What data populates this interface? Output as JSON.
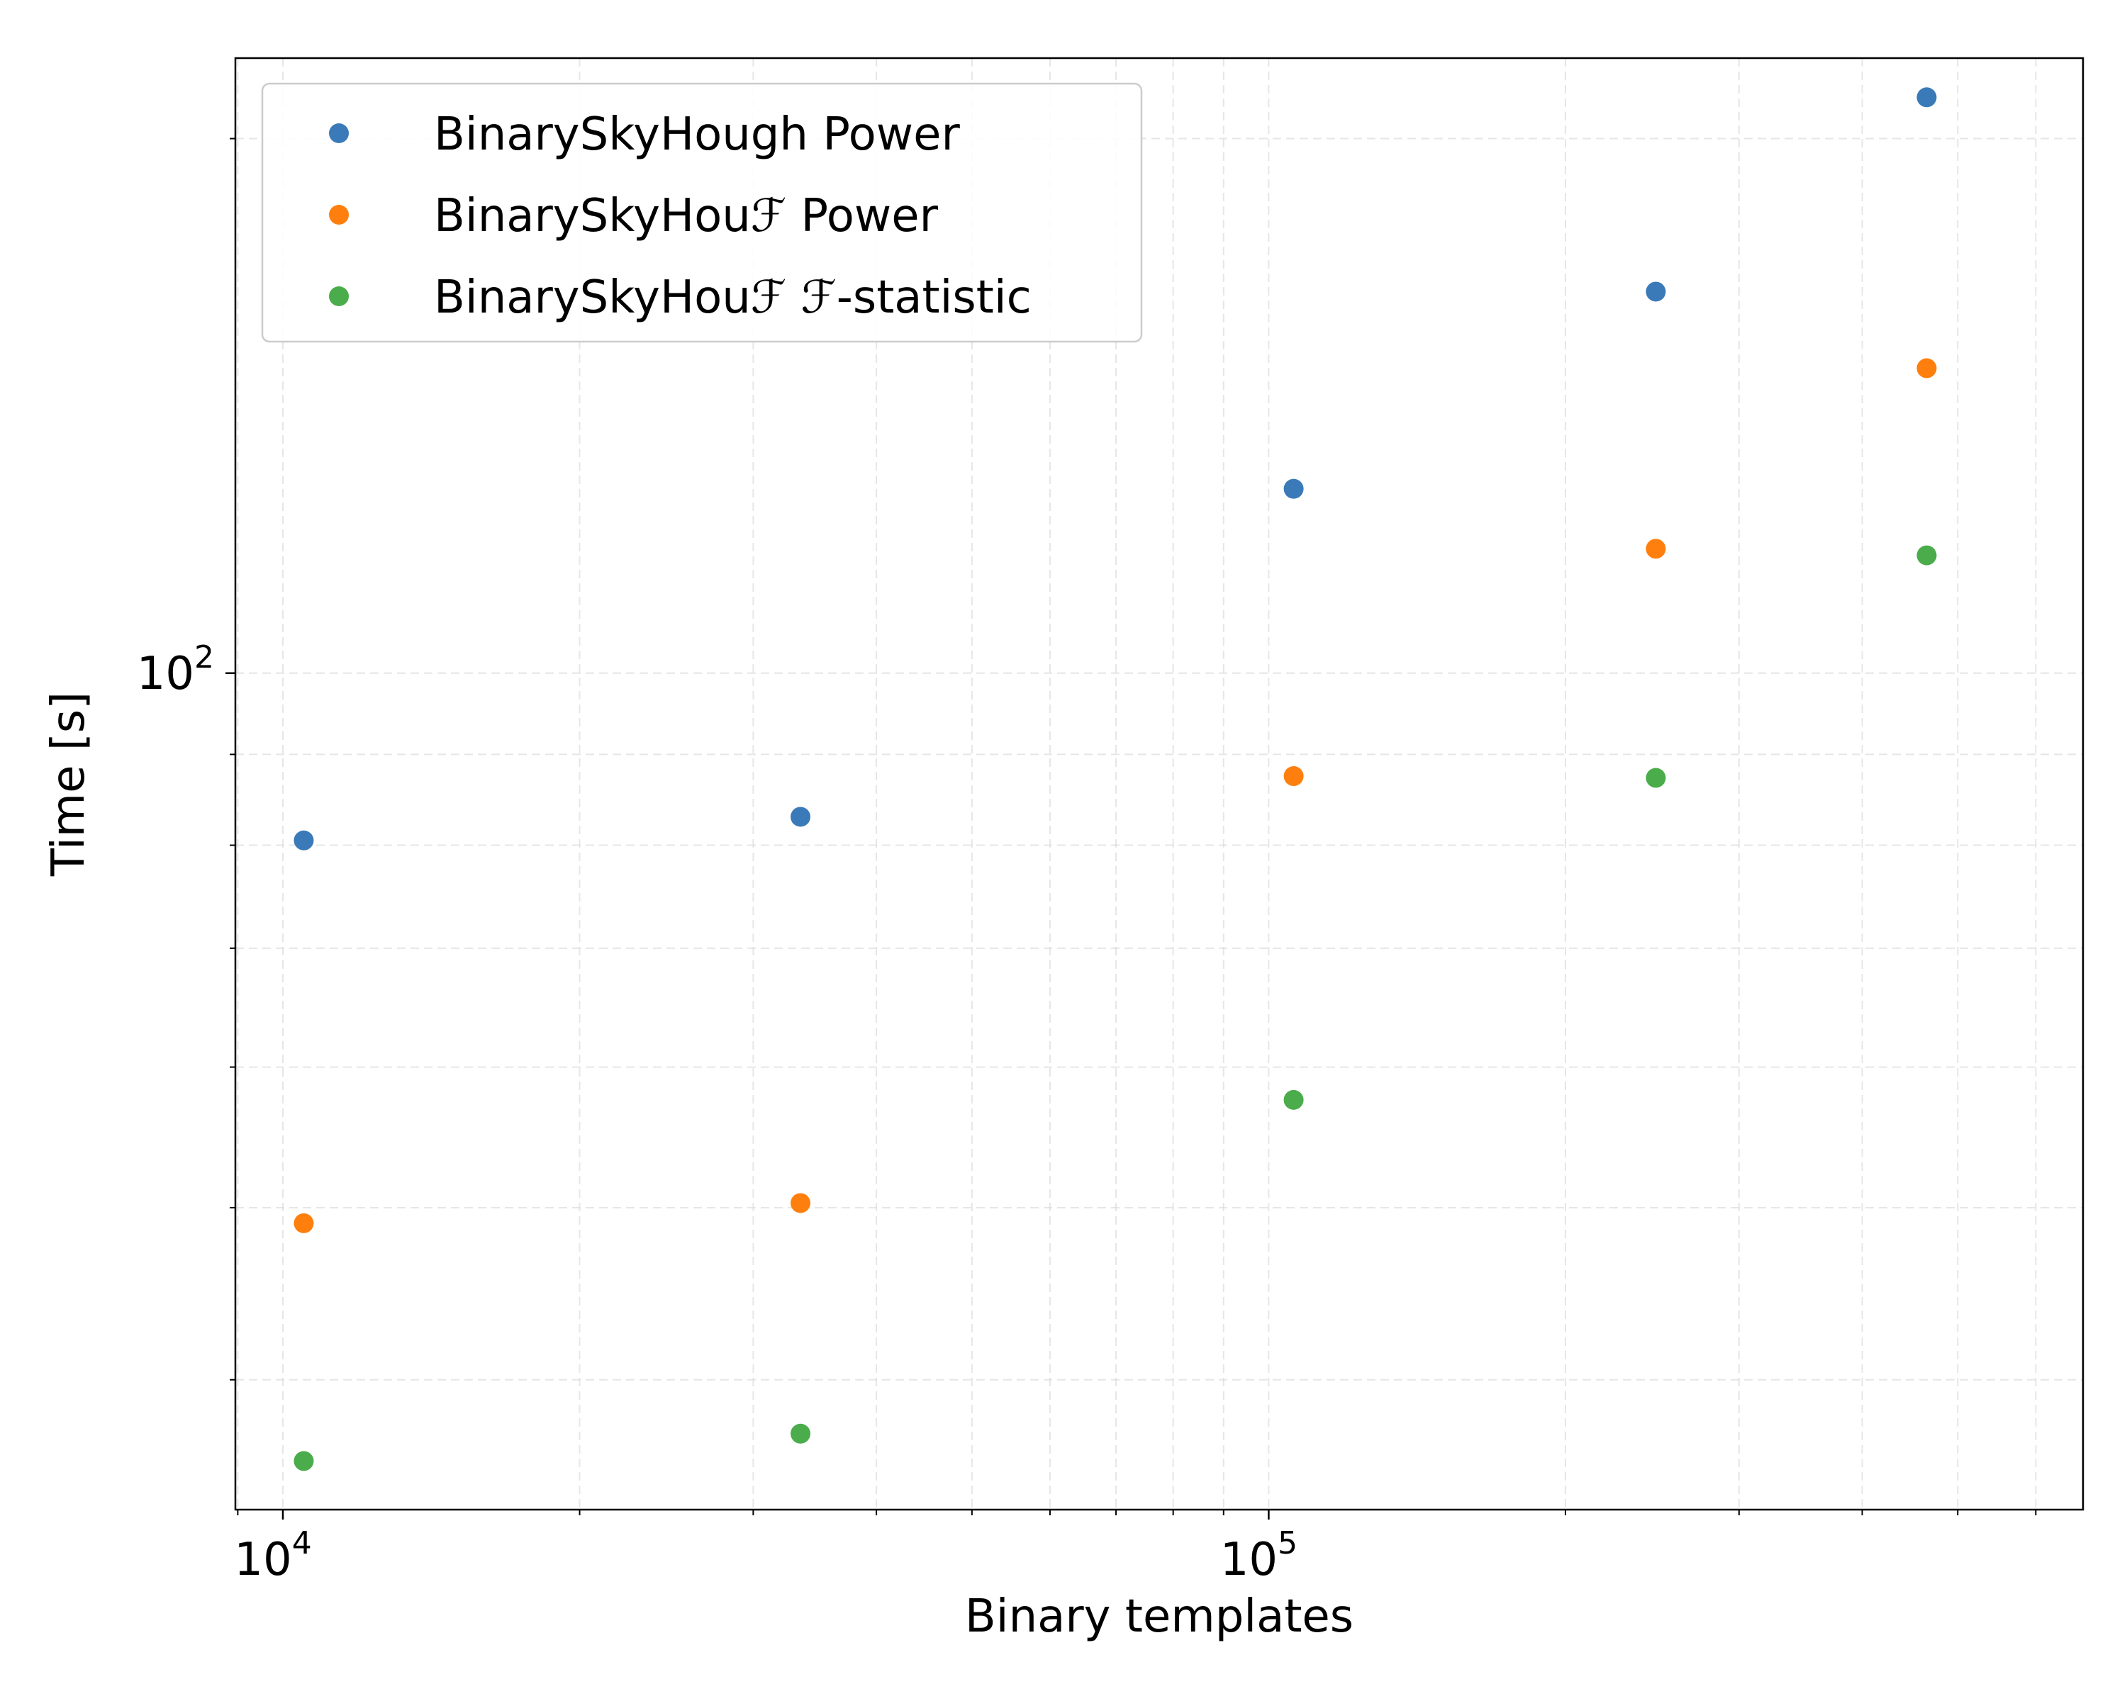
{
  "chart_data": {
    "type": "scatter",
    "title": "",
    "xlabel": "Binary templates",
    "ylabel": "Time [s]",
    "xscale": "log",
    "yscale": "log",
    "xlim": [
      8950,
      670000
    ],
    "ylim": [
      33.8,
      222
    ],
    "xticks": [
      {
        "value": 10000,
        "base": "10",
        "exp": "4"
      },
      {
        "value": 100000,
        "base": "10",
        "exp": "5"
      }
    ],
    "yticks": [
      {
        "value": 100,
        "base": "10",
        "exp": "2"
      }
    ],
    "grid": true,
    "legend_position": "top-left",
    "series": [
      {
        "name": "BinarySkyHough Power",
        "color": "#3a7ab8",
        "points": [
          {
            "x": 10500,
            "y": 80.5
          },
          {
            "x": 33500,
            "y": 83.0
          },
          {
            "x": 106000,
            "y": 127.0
          },
          {
            "x": 247000,
            "y": 164.0
          },
          {
            "x": 465000,
            "y": 211.0
          }
        ]
      },
      {
        "name": "BinarySkyHouℱ Power",
        "color": "#ff7f0e",
        "points": [
          {
            "x": 10500,
            "y": 49.0
          },
          {
            "x": 33500,
            "y": 50.3
          },
          {
            "x": 106000,
            "y": 87.5
          },
          {
            "x": 247000,
            "y": 117.5
          },
          {
            "x": 465000,
            "y": 148.5
          }
        ]
      },
      {
        "name": "BinarySkyHouℱ ℱ-statistic",
        "color": "#4aac4a",
        "points": [
          {
            "x": 10500,
            "y": 36.0
          },
          {
            "x": 33500,
            "y": 37.3
          },
          {
            "x": 106000,
            "y": 57.5
          },
          {
            "x": 247000,
            "y": 87.3
          },
          {
            "x": 465000,
            "y": 116.5
          }
        ]
      }
    ]
  }
}
